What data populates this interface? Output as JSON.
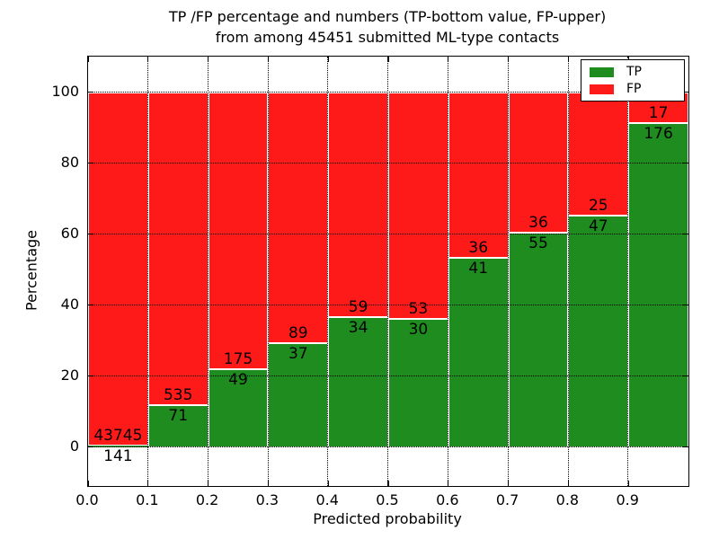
{
  "chart_data": {
    "type": "bar",
    "stacked": true,
    "title_line1": "TP /FP percentage and numbers (TP-bottom value, FP-upper)",
    "title_line2": "from among 45451 submitted ML-type contacts",
    "xlabel": "Predicted probability",
    "ylabel": "Percentage",
    "total_submitted": 45451,
    "xlim": [
      0.0,
      1.0
    ],
    "ylim": [
      -11,
      110
    ],
    "x_tick_labels": [
      "0.0",
      "0.1",
      "0.2",
      "0.3",
      "0.4",
      "0.5",
      "0.6",
      "0.7",
      "0.8",
      "0.9"
    ],
    "y_tick_values": [
      0,
      20,
      40,
      60,
      80,
      100
    ],
    "grid": true,
    "bin_width": 0.1,
    "categories": [
      "0.0-0.1",
      "0.1-0.2",
      "0.2-0.3",
      "0.3-0.4",
      "0.4-0.5",
      "0.5-0.6",
      "0.6-0.7",
      "0.7-0.8",
      "0.8-0.9",
      "0.9-1.0"
    ],
    "series": [
      {
        "name": "TP",
        "color": "#1e8c1e",
        "counts": [
          141,
          71,
          49,
          37,
          34,
          30,
          41,
          55,
          47,
          176
        ]
      },
      {
        "name": "FP",
        "color": "#ff1a1a",
        "counts": [
          43745,
          535,
          175,
          89,
          59,
          53,
          36,
          36,
          25,
          17
        ]
      }
    ],
    "legend": {
      "position": "upper right",
      "entries": [
        {
          "label": "TP",
          "color": "#1e8c1e"
        },
        {
          "label": "FP",
          "color": "#ff1a1a"
        }
      ]
    },
    "bar_edge_color": "#ffffff",
    "grid_color": "#000000"
  }
}
